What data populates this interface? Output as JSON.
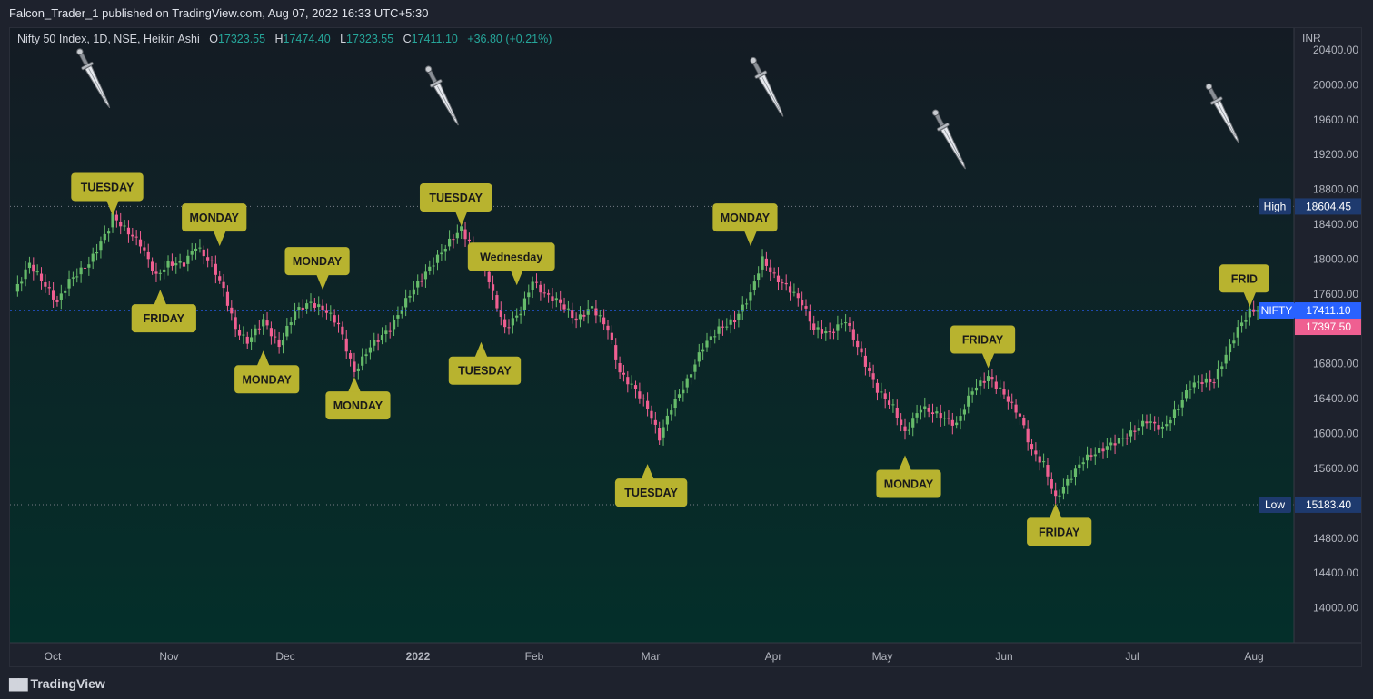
{
  "header": {
    "published_text": "Falcon_Trader_1 published on TradingView.com, Aug 07, 2022 16:33 UTC+5:30"
  },
  "legend": {
    "symbol_text": "Nifty 50 Index, 1D, NSE, Heikin Ashi",
    "o_label": "O",
    "o_value": "17323.55",
    "h_label": "H",
    "h_value": "17474.40",
    "l_label": "L",
    "l_value": "17323.55",
    "c_label": "C",
    "c_value": "17411.10",
    "change": "+36.80 (+0.21%)"
  },
  "footer": {
    "brand": "TradingView"
  },
  "colors": {
    "up": "#66bb6a",
    "down": "#ef5f91",
    "callout": "#b8b32f",
    "current_line": "#2962ff",
    "hl_line": "#787b86",
    "bg_top": "#121a22",
    "bg_bottom": "#04302a"
  },
  "chart_data": {
    "type": "candlestick",
    "style": "Heikin Ashi",
    "currency": "INR",
    "y_axis_ticks": [
      "20400.00",
      "20000.00",
      "19600.00",
      "19200.00",
      "18800.00",
      "18400.00",
      "18000.00",
      "17600.00",
      "16800.00",
      "16400.00",
      "16000.00",
      "15600.00",
      "14800.00",
      "14400.00",
      "14000.00"
    ],
    "x_axis_labels": [
      "Oct",
      "Nov",
      "Dec",
      "2022",
      "Feb",
      "Mar",
      "Apr",
      "May",
      "Jun",
      "Jul",
      "Aug"
    ],
    "ylim": [
      13600,
      20650
    ],
    "high_label": "High",
    "high_value": "18604.45",
    "low_label": "Low",
    "low_value": "15183.40",
    "current_label": "NIFTY",
    "current_value": "17411.10",
    "secondary_price": "17397.50",
    "close_path": [
      {
        "x": 0,
        "y": 17600
      },
      {
        "x": 4,
        "y": 17950
      },
      {
        "x": 8,
        "y": 17700
      },
      {
        "x": 11,
        "y": 17500
      },
      {
        "x": 14,
        "y": 17750
      },
      {
        "x": 19,
        "y": 17950
      },
      {
        "x": 24,
        "y": 18350
      },
      {
        "x": 25,
        "y": 18500
      },
      {
        "x": 28,
        "y": 18350
      },
      {
        "x": 32,
        "y": 18180
      },
      {
        "x": 36,
        "y": 17800
      },
      {
        "x": 39,
        "y": 17950
      },
      {
        "x": 43,
        "y": 17950
      },
      {
        "x": 46,
        "y": 18150
      },
      {
        "x": 50,
        "y": 17950
      },
      {
        "x": 53,
        "y": 17650
      },
      {
        "x": 56,
        "y": 17200
      },
      {
        "x": 59,
        "y": 17050
      },
      {
        "x": 63,
        "y": 17300
      },
      {
        "x": 67,
        "y": 17000
      },
      {
        "x": 71,
        "y": 17400
      },
      {
        "x": 75,
        "y": 17500
      },
      {
        "x": 79,
        "y": 17400
      },
      {
        "x": 82,
        "y": 17250
      },
      {
        "x": 86,
        "y": 16700
      },
      {
        "x": 90,
        "y": 17000
      },
      {
        "x": 95,
        "y": 17200
      },
      {
        "x": 100,
        "y": 17600
      },
      {
        "x": 105,
        "y": 17900
      },
      {
        "x": 110,
        "y": 18200
      },
      {
        "x": 113,
        "y": 18350
      },
      {
        "x": 116,
        "y": 18100
      },
      {
        "x": 119,
        "y": 17900
      },
      {
        "x": 121,
        "y": 17600
      },
      {
        "x": 124,
        "y": 17200
      },
      {
        "x": 128,
        "y": 17400
      },
      {
        "x": 131,
        "y": 17750
      },
      {
        "x": 134,
        "y": 17600
      },
      {
        "x": 138,
        "y": 17500
      },
      {
        "x": 142,
        "y": 17300
      },
      {
        "x": 146,
        "y": 17450
      },
      {
        "x": 150,
        "y": 17200
      },
      {
        "x": 153,
        "y": 16700
      },
      {
        "x": 157,
        "y": 16500
      },
      {
        "x": 160,
        "y": 16300
      },
      {
        "x": 163,
        "y": 15950
      },
      {
        "x": 166,
        "y": 16300
      },
      {
        "x": 170,
        "y": 16600
      },
      {
        "x": 174,
        "y": 17000
      },
      {
        "x": 178,
        "y": 17200
      },
      {
        "x": 182,
        "y": 17300
      },
      {
        "x": 186,
        "y": 17600
      },
      {
        "x": 189,
        "y": 18000
      },
      {
        "x": 192,
        "y": 17800
      },
      {
        "x": 196,
        "y": 17650
      },
      {
        "x": 199,
        "y": 17500
      },
      {
        "x": 202,
        "y": 17200
      },
      {
        "x": 206,
        "y": 17150
      },
      {
        "x": 210,
        "y": 17300
      },
      {
        "x": 214,
        "y": 16900
      },
      {
        "x": 218,
        "y": 16500
      },
      {
        "x": 222,
        "y": 16300
      },
      {
        "x": 225,
        "y": 16000
      },
      {
        "x": 229,
        "y": 16300
      },
      {
        "x": 234,
        "y": 16200
      },
      {
        "x": 238,
        "y": 16100
      },
      {
        "x": 242,
        "y": 16500
      },
      {
        "x": 246,
        "y": 16650
      },
      {
        "x": 250,
        "y": 16450
      },
      {
        "x": 254,
        "y": 16200
      },
      {
        "x": 257,
        "y": 15800
      },
      {
        "x": 260,
        "y": 15650
      },
      {
        "x": 263,
        "y": 15250
      },
      {
        "x": 266,
        "y": 15450
      },
      {
        "x": 270,
        "y": 15700
      },
      {
        "x": 274,
        "y": 15800
      },
      {
        "x": 278,
        "y": 15900
      },
      {
        "x": 282,
        "y": 16000
      },
      {
        "x": 286,
        "y": 16150
      },
      {
        "x": 290,
        "y": 16050
      },
      {
        "x": 294,
        "y": 16300
      },
      {
        "x": 297,
        "y": 16550
      },
      {
        "x": 300,
        "y": 16600
      },
      {
        "x": 303,
        "y": 16600
      },
      {
        "x": 306,
        "y": 16900
      },
      {
        "x": 309,
        "y": 17200
      },
      {
        "x": 312,
        "y": 17400
      },
      {
        "x": 314,
        "y": 17420
      }
    ],
    "annotations": [
      {
        "text": "TUESDAY",
        "type": "top",
        "bar": 25,
        "price": 18500
      },
      {
        "text": "FRIDAY",
        "type": "bottom",
        "bar": 37,
        "price": 17650
      },
      {
        "text": "MONDAY",
        "type": "top",
        "bar": 52,
        "price": 18150
      },
      {
        "text": "MONDAY",
        "type": "bottom",
        "bar": 63,
        "price": 16950
      },
      {
        "text": "MONDAY",
        "type": "top",
        "bar": 78,
        "price": 17650
      },
      {
        "text": "MONDAY",
        "type": "bottom",
        "bar": 86,
        "price": 16650
      },
      {
        "text": "TUESDAY",
        "type": "top",
        "bar": 113,
        "price": 18380
      },
      {
        "text": "TUESDAY",
        "type": "bottom",
        "bar": 118,
        "price": 17050
      },
      {
        "text": "Wednesday",
        "type": "top",
        "bar": 127,
        "price": 17700
      },
      {
        "text": "TUESDAY",
        "type": "bottom",
        "bar": 160,
        "price": 15650
      },
      {
        "text": "MONDAY",
        "type": "top",
        "bar": 186,
        "price": 18150
      },
      {
        "text": "MONDAY",
        "type": "bottom",
        "bar": 225,
        "price": 15750
      },
      {
        "text": "FRIDAY",
        "type": "top",
        "bar": 246,
        "price": 16750
      },
      {
        "text": "FRIDAY",
        "type": "bottom",
        "bar": 263,
        "price": 15200
      },
      {
        "text": "FRID",
        "type": "top",
        "bar": 312,
        "price": 17450
      }
    ],
    "dagger_icons": [
      {
        "name": "dagger-icon",
        "bar": 19
      },
      {
        "name": "dagger-icon",
        "bar": 107
      },
      {
        "name": "dagger-icon",
        "bar": 189
      },
      {
        "name": "dagger-icon",
        "bar": 235
      },
      {
        "name": "dagger-icon",
        "bar": 304
      }
    ]
  }
}
